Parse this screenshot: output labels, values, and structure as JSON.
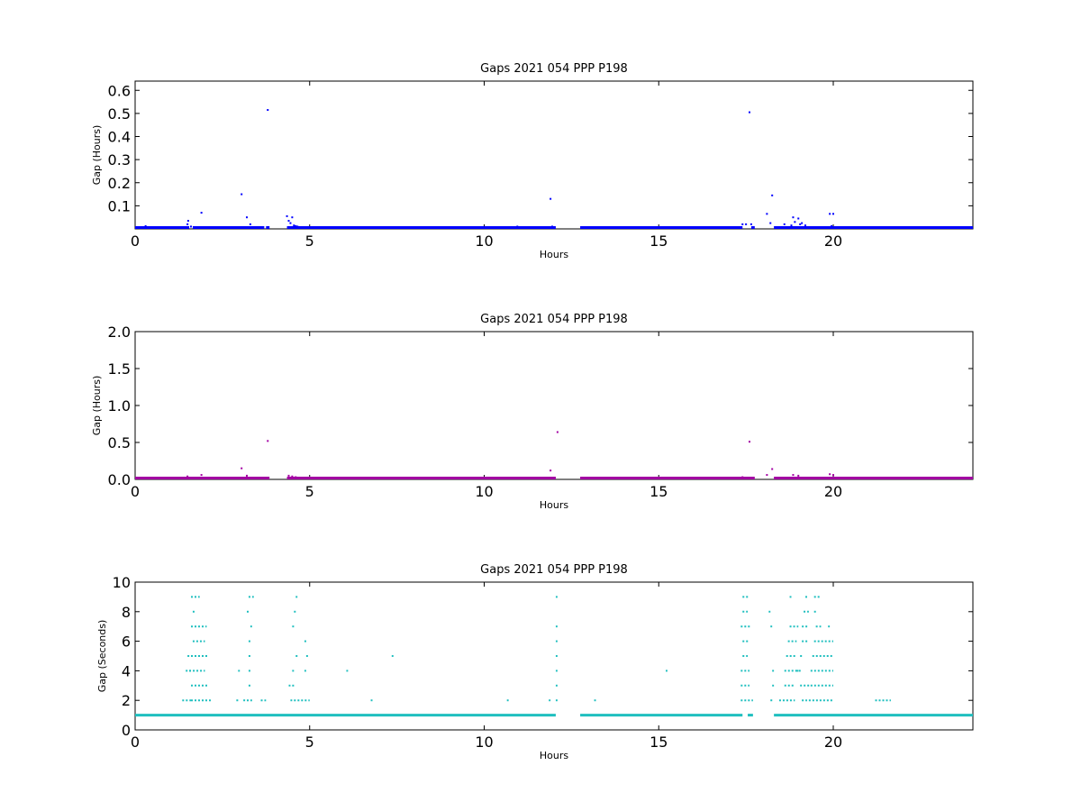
{
  "chart_data": [
    {
      "type": "scatter",
      "title": "Gaps 2021 054 PPP  P198",
      "xlabel": "Hours",
      "ylabel": "Gap (Hours)",
      "xlim": [
        0,
        24
      ],
      "ylim": [
        0,
        0.64
      ],
      "xticks": [
        0,
        5,
        10,
        15,
        20
      ],
      "yticks": [
        0.1,
        0.2,
        0.3,
        0.4,
        0.5,
        0.6
      ],
      "ytick_labels": [
        "0.1",
        "0.2",
        "0.3",
        "0.4",
        "0.5",
        "0.6"
      ],
      "color": "#0000ff",
      "baseline_segments": [
        [
          0,
          1.55
        ],
        [
          1.65,
          3.7
        ],
        [
          3.75,
          3.85
        ],
        [
          4.35,
          12.05
        ],
        [
          12.75,
          17.4
        ],
        [
          17.65,
          17.75
        ],
        [
          18.3,
          24
        ]
      ],
      "baseline_value": 0.0,
      "points": [
        [
          0.3,
          0.012
        ],
        [
          1.5,
          0.02
        ],
        [
          1.52,
          0.035
        ],
        [
          1.6,
          0.01
        ],
        [
          1.7,
          0.008
        ],
        [
          1.9,
          0.07
        ],
        [
          3.05,
          0.15
        ],
        [
          3.2,
          0.05
        ],
        [
          3.3,
          0.02
        ],
        [
          3.8,
          0.515
        ],
        [
          4.35,
          0.055
        ],
        [
          4.4,
          0.035
        ],
        [
          4.45,
          0.025
        ],
        [
          4.5,
          0.05
        ],
        [
          4.55,
          0.015
        ],
        [
          4.6,
          0.012
        ],
        [
          4.65,
          0.01
        ],
        [
          4.7,
          0.008
        ],
        [
          10.95,
          0.01
        ],
        [
          11.9,
          0.13
        ],
        [
          11.95,
          0.01
        ],
        [
          17.4,
          0.02
        ],
        [
          17.5,
          0.02
        ],
        [
          17.6,
          0.505
        ],
        [
          17.65,
          0.02
        ],
        [
          18.1,
          0.065
        ],
        [
          18.2,
          0.025
        ],
        [
          18.25,
          0.145
        ],
        [
          18.6,
          0.02
        ],
        [
          18.8,
          0.015
        ],
        [
          18.85,
          0.05
        ],
        [
          18.9,
          0.03
        ],
        [
          19.0,
          0.045
        ],
        [
          19.05,
          0.02
        ],
        [
          19.1,
          0.025
        ],
        [
          19.2,
          0.015
        ],
        [
          19.9,
          0.065
        ],
        [
          20.0,
          0.065
        ],
        [
          19.95,
          0.012
        ]
      ]
    },
    {
      "type": "scatter",
      "title": "Gaps 2021 054 PPP  P198",
      "xlabel": "Hours",
      "ylabel": "Gap (Hours)",
      "xlim": [
        0,
        24
      ],
      "ylim": [
        0,
        2.0
      ],
      "xticks": [
        0,
        5,
        10,
        15,
        20
      ],
      "yticks": [
        0.0,
        0.5,
        1.0,
        1.5,
        2.0
      ],
      "ytick_labels": [
        "0.0",
        "0.5",
        "1.0",
        "1.5",
        "2.0"
      ],
      "color": "#a300a3",
      "baseline_segments": [
        [
          0,
          3.85
        ],
        [
          4.35,
          12.05
        ],
        [
          12.75,
          17.75
        ],
        [
          18.3,
          24
        ]
      ],
      "baseline_value": 0.003,
      "points": [
        [
          1.5,
          0.04
        ],
        [
          1.9,
          0.06
        ],
        [
          3.05,
          0.15
        ],
        [
          3.2,
          0.05
        ],
        [
          3.8,
          0.52
        ],
        [
          4.4,
          0.05
        ],
        [
          4.5,
          0.04
        ],
        [
          4.6,
          0.03
        ],
        [
          11.9,
          0.12
        ],
        [
          12.1,
          0.64
        ],
        [
          17.4,
          0.03
        ],
        [
          17.6,
          0.51
        ],
        [
          18.1,
          0.06
        ],
        [
          18.25,
          0.14
        ],
        [
          18.85,
          0.06
        ],
        [
          19.0,
          0.05
        ],
        [
          19.9,
          0.07
        ],
        [
          20.0,
          0.06
        ]
      ]
    },
    {
      "type": "scatter",
      "title": "Gaps 2021 054 PPP  P198",
      "xlabel": "Hours",
      "ylabel": "Gap (Seconds)",
      "xlim": [
        0,
        24
      ],
      "ylim": [
        0,
        10
      ],
      "xticks": [
        0,
        5,
        10,
        15,
        20
      ],
      "yticks": [
        0,
        2,
        4,
        6,
        8,
        10
      ],
      "ytick_labels": [
        "0",
        "2",
        "4",
        "6",
        "8",
        "10"
      ],
      "color": "#1fbfbf",
      "baseline_segments": [
        [
          0,
          12.05
        ],
        [
          12.75,
          17.4
        ],
        [
          17.55,
          17.7
        ],
        [
          18.3,
          24
        ]
      ],
      "baseline_value": 1,
      "point_segments": [
        [
          1.35,
          1.6,
          2
        ],
        [
          1.6,
          2.2,
          2
        ],
        [
          1.45,
          1.6,
          4
        ],
        [
          1.5,
          1.65,
          5
        ],
        [
          1.6,
          2.1,
          3
        ],
        [
          1.55,
          2.0,
          4
        ],
        [
          1.6,
          2.1,
          5
        ],
        [
          1.65,
          2.0,
          6
        ],
        [
          1.6,
          2.05,
          7
        ],
        [
          1.65,
          1.75,
          8
        ],
        [
          1.6,
          1.85,
          9
        ],
        [
          2.9,
          3.0,
          2
        ],
        [
          2.95,
          3.0,
          4
        ],
        [
          3.1,
          3.2,
          2
        ],
        [
          3.2,
          3.35,
          2
        ],
        [
          3.25,
          3.35,
          3
        ],
        [
          3.25,
          3.35,
          4
        ],
        [
          3.25,
          3.35,
          5
        ],
        [
          3.25,
          3.35,
          6
        ],
        [
          3.3,
          3.35,
          7
        ],
        [
          3.2,
          3.3,
          8
        ],
        [
          3.25,
          3.4,
          9
        ],
        [
          3.6,
          3.75,
          2
        ],
        [
          4.4,
          4.45,
          3
        ],
        [
          4.45,
          4.5,
          2
        ],
        [
          4.55,
          5.0,
          2
        ],
        [
          4.5,
          4.6,
          3
        ],
        [
          4.5,
          4.55,
          4
        ],
        [
          4.85,
          4.9,
          4
        ],
        [
          4.6,
          4.7,
          5
        ],
        [
          4.9,
          5.0,
          5
        ],
        [
          4.85,
          4.95,
          6
        ],
        [
          4.5,
          4.6,
          7
        ],
        [
          4.55,
          4.65,
          8
        ],
        [
          4.6,
          4.65,
          9
        ],
        [
          6.05,
          6.1,
          4
        ],
        [
          6.75,
          6.8,
          2
        ],
        [
          7.35,
          7.4,
          5
        ],
        [
          10.65,
          10.7,
          2
        ],
        [
          11.85,
          11.9,
          2
        ],
        [
          12.05,
          12.1,
          2
        ],
        [
          12.05,
          12.1,
          3
        ],
        [
          12.05,
          12.1,
          4
        ],
        [
          12.05,
          12.1,
          5
        ],
        [
          12.05,
          12.1,
          6
        ],
        [
          12.05,
          12.1,
          7
        ],
        [
          12.05,
          12.1,
          9
        ],
        [
          13.15,
          13.2,
          2
        ],
        [
          15.2,
          15.25,
          4
        ],
        [
          17.35,
          17.7,
          2
        ],
        [
          17.35,
          17.6,
          3
        ],
        [
          17.35,
          17.6,
          4
        ],
        [
          17.4,
          17.55,
          5
        ],
        [
          17.4,
          17.6,
          6
        ],
        [
          17.35,
          17.65,
          7
        ],
        [
          17.4,
          17.55,
          8
        ],
        [
          17.4,
          17.6,
          9
        ],
        [
          18.15,
          18.2,
          8
        ],
        [
          18.2,
          18.25,
          7
        ],
        [
          18.25,
          18.3,
          4
        ],
        [
          18.25,
          18.3,
          3
        ],
        [
          18.2,
          18.3,
          2
        ],
        [
          18.45,
          18.9,
          2
        ],
        [
          18.6,
          18.9,
          3
        ],
        [
          18.6,
          19.1,
          4
        ],
        [
          18.65,
          18.95,
          5
        ],
        [
          18.7,
          18.95,
          6
        ],
        [
          18.75,
          19.0,
          7
        ],
        [
          18.75,
          18.8,
          9
        ],
        [
          18.95,
          19.05,
          4
        ],
        [
          19.05,
          19.35,
          3
        ],
        [
          19.1,
          19.25,
          2
        ],
        [
          19.05,
          19.15,
          5
        ],
        [
          19.1,
          19.3,
          6
        ],
        [
          19.1,
          19.3,
          7
        ],
        [
          19.15,
          19.3,
          8
        ],
        [
          19.2,
          19.3,
          9
        ],
        [
          19.3,
          20.0,
          2
        ],
        [
          19.35,
          20.0,
          3
        ],
        [
          19.35,
          20.0,
          4
        ],
        [
          19.4,
          20.0,
          5
        ],
        [
          19.45,
          20.0,
          6
        ],
        [
          19.5,
          19.65,
          7
        ],
        [
          19.85,
          19.9,
          7
        ],
        [
          19.45,
          19.55,
          8
        ],
        [
          19.45,
          19.65,
          9
        ],
        [
          21.2,
          21.65,
          2
        ]
      ]
    }
  ]
}
